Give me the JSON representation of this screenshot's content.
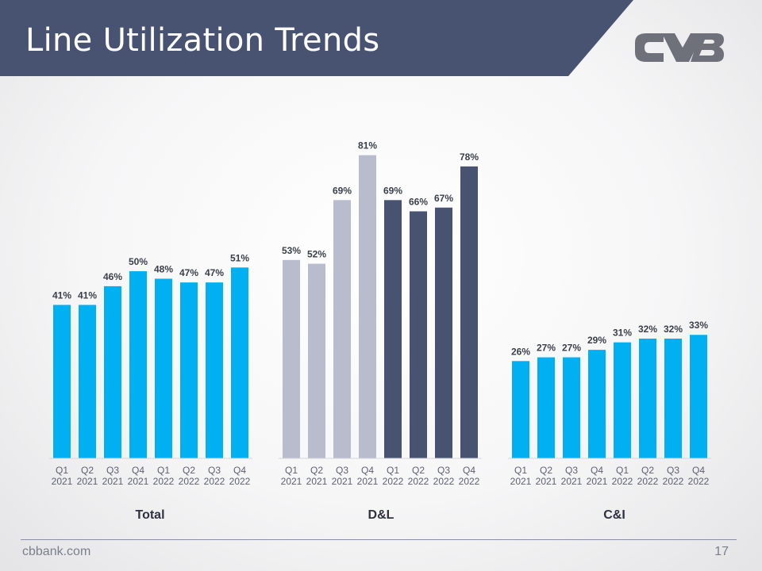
{
  "slide": {
    "title": "Line Utilization Trends",
    "footer_site": "cbbank.com",
    "page_number": "17",
    "colors": {
      "banner": "#475371",
      "accent": "#00b0f0",
      "light": "#b8bccd",
      "dark": "#475371",
      "logo": "#6e717a"
    }
  },
  "chart_data": [
    {
      "type": "bar",
      "title": "Total",
      "categories": [
        [
          "Q1",
          "2021"
        ],
        [
          "Q2",
          "2021"
        ],
        [
          "Q3",
          "2021"
        ],
        [
          "Q4",
          "2021"
        ],
        [
          "Q1",
          "2022"
        ],
        [
          "Q2",
          "2022"
        ],
        [
          "Q3",
          "2022"
        ],
        [
          "Q4",
          "2022"
        ]
      ],
      "values": [
        41,
        41,
        46,
        50,
        48,
        47,
        47,
        51
      ],
      "labels": [
        "41%",
        "41%",
        "46%",
        "50%",
        "48%",
        "47%",
        "47%",
        "51%"
      ],
      "colors": [
        "#00b0f0",
        "#00b0f0",
        "#00b0f0",
        "#00b0f0",
        "#00b0f0",
        "#00b0f0",
        "#00b0f0",
        "#00b0f0"
      ],
      "ylim": [
        0,
        100
      ],
      "grid": false
    },
    {
      "type": "bar",
      "title": "D&L",
      "categories": [
        [
          "Q1",
          "2021"
        ],
        [
          "Q2",
          "2021"
        ],
        [
          "Q3",
          "2021"
        ],
        [
          "Q4",
          "2021"
        ],
        [
          "Q1",
          "2022"
        ],
        [
          "Q2",
          "2022"
        ],
        [
          "Q3",
          "2022"
        ],
        [
          "Q4",
          "2022"
        ]
      ],
      "values": [
        53,
        52,
        69,
        81,
        69,
        66,
        67,
        78
      ],
      "labels": [
        "53%",
        "52%",
        "69%",
        "81%",
        "69%",
        "66%",
        "67%",
        "78%"
      ],
      "colors": [
        "#b8bccd",
        "#b8bccd",
        "#b8bccd",
        "#b8bccd",
        "#475371",
        "#475371",
        "#475371",
        "#475371"
      ],
      "ylim": [
        0,
        100
      ],
      "grid": false
    },
    {
      "type": "bar",
      "title": "C&I",
      "categories": [
        [
          "Q1",
          "2021"
        ],
        [
          "Q2",
          "2021"
        ],
        [
          "Q3",
          "2021"
        ],
        [
          "Q4",
          "2021"
        ],
        [
          "Q1",
          "2022"
        ],
        [
          "Q2",
          "2022"
        ],
        [
          "Q3",
          "2022"
        ],
        [
          "Q4",
          "2022"
        ]
      ],
      "values": [
        26,
        27,
        27,
        29,
        31,
        32,
        32,
        33
      ],
      "labels": [
        "26%",
        "27%",
        "27%",
        "29%",
        "31%",
        "32%",
        "32%",
        "33%"
      ],
      "colors": [
        "#00b0f0",
        "#00b0f0",
        "#00b0f0",
        "#00b0f0",
        "#00b0f0",
        "#00b0f0",
        "#00b0f0",
        "#00b0f0"
      ],
      "ylim": [
        0,
        100
      ],
      "grid": false
    }
  ]
}
